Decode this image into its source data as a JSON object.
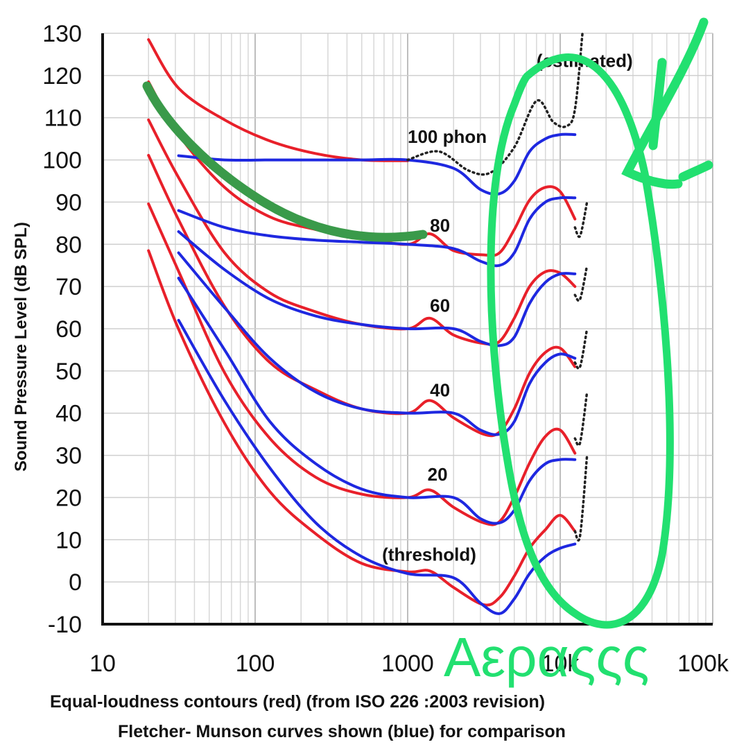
{
  "chart_data": {
    "type": "line",
    "title": "",
    "xlabel": "",
    "ylabel": "Sound Pressure Level (dB SPL)",
    "x_scale": "log",
    "xlim": [
      10,
      100000
    ],
    "ylim": [
      -10,
      130
    ],
    "grid": true,
    "x_ticks": [
      10,
      100,
      1000,
      10000,
      100000
    ],
    "x_tick_labels": [
      "10",
      "100",
      "1000",
      "10k",
      "100k"
    ],
    "y_ticks": [
      -10,
      0,
      10,
      20,
      30,
      40,
      50,
      60,
      70,
      80,
      90,
      100,
      110,
      120,
      130
    ],
    "y_tick_labels": [
      "-10",
      "0",
      "10",
      "20",
      "30",
      "40",
      "50",
      "60",
      "70",
      "80",
      "90",
      "100",
      "110",
      "120",
      "130"
    ],
    "caption_lines": [
      "Equal-loudness contours (red) (from ISO 226 :2003 revision)",
      "Fletcher- Munson curves shown (blue) for comparison"
    ],
    "annotations": [
      {
        "text": "(estimated)",
        "x": 7000,
        "y": 122
      },
      {
        "text": "100 phon",
        "x": 1000,
        "y": 104
      },
      {
        "text": "80",
        "x": 1400,
        "y": 83
      },
      {
        "text": "60",
        "x": 1400,
        "y": 64
      },
      {
        "text": "40",
        "x": 1400,
        "y": 44
      },
      {
        "text": "20",
        "x": 1350,
        "y": 24
      },
      {
        "text": "(threshold)",
        "x": 680,
        "y": 5
      }
    ],
    "series": [
      {
        "color": "#e8202a",
        "group": "iso",
        "x": [
          20,
          31.5,
          63,
          125,
          250,
          500,
          1000,
          1400,
          2000,
          3150,
          4000,
          5000,
          6300,
          8000,
          10000,
          12500
        ],
        "y": [
          78.5,
          59.9,
          37.6,
          21.4,
          11.4,
          4.4,
          2.4,
          2.6,
          -1.3,
          -5.4,
          -3.7,
          1.4,
          8,
          12.4,
          15.8,
          12
        ]
      },
      {
        "color": "#e8202a",
        "group": "iso",
        "x": [
          20,
          31.5,
          63,
          125,
          250,
          500,
          1000,
          1400,
          2000,
          3150,
          4000,
          5000,
          6300,
          8000,
          10000,
          12500
        ],
        "y": [
          89.6,
          73.6,
          49.6,
          34,
          24.8,
          20.8,
          20,
          21.8,
          17.7,
          14,
          14.3,
          20.1,
          28.2,
          34.5,
          36,
          30.5
        ]
      },
      {
        "color": "#e8202a",
        "group": "iso",
        "x": [
          20,
          31.5,
          63,
          125,
          250,
          500,
          1000,
          1400,
          2000,
          3150,
          4000,
          5000,
          6300,
          8000,
          10000,
          12500
        ],
        "y": [
          101.1,
          85.8,
          65.3,
          52,
          45.5,
          41,
          40,
          43,
          38.9,
          35,
          35.5,
          41,
          49.5,
          54.4,
          55.4,
          51
        ]
      },
      {
        "color": "#e8202a",
        "group": "iso",
        "x": [
          20,
          31.5,
          63,
          125,
          250,
          500,
          1000,
          1400,
          2000,
          3150,
          4000,
          5000,
          6300,
          8000,
          10000,
          12500
        ],
        "y": [
          109.5,
          95.8,
          78,
          68.5,
          64,
          61,
          60,
          62.5,
          58.5,
          56.5,
          57,
          62.5,
          70,
          73.5,
          73.2,
          70
        ]
      },
      {
        "color": "#e8202a",
        "group": "iso",
        "x": [
          20,
          31.5,
          63,
          125,
          250,
          500,
          1000,
          1400,
          2000,
          3150,
          4000,
          5000,
          6300,
          8000,
          10000,
          12500
        ],
        "y": [
          118.5,
          106,
          93.5,
          86.5,
          83.5,
          81.5,
          80,
          82.5,
          78.5,
          77.5,
          78,
          83.5,
          90.5,
          93.5,
          92.5,
          86
        ]
      },
      {
        "color": "#e8202a",
        "group": "iso",
        "x": [
          20,
          31.5,
          63,
          125,
          250,
          500,
          1000
        ],
        "y": [
          128.5,
          117,
          109.5,
          104.5,
          101.5,
          100,
          99.8
        ]
      },
      {
        "color": "#1e28e0",
        "group": "fm",
        "x": [
          31.5,
          63,
          125,
          250,
          500,
          1000,
          2000,
          3000,
          4000,
          5000,
          6300,
          8000,
          10000,
          12500
        ],
        "y": [
          62,
          43,
          27,
          14,
          6,
          2,
          1,
          -5,
          -7.5,
          -4,
          2,
          6,
          8,
          9
        ]
      },
      {
        "color": "#1e28e0",
        "group": "fm",
        "x": [
          31.5,
          63,
          125,
          250,
          500,
          1000,
          2000,
          3000,
          4000,
          5000,
          6300,
          8000,
          10000,
          12500
        ],
        "y": [
          72,
          55,
          38,
          28,
          22,
          20,
          20,
          15,
          14,
          17,
          24,
          28,
          29,
          29
        ]
      },
      {
        "color": "#1e28e0",
        "group": "fm",
        "x": [
          31.5,
          63,
          125,
          250,
          500,
          1000,
          2000,
          3000,
          4000,
          5000,
          6300,
          8000,
          10000,
          12500
        ],
        "y": [
          78,
          65,
          53,
          45,
          41,
          40,
          40,
          36,
          35,
          38,
          47,
          52,
          54,
          53
        ]
      },
      {
        "color": "#1e28e0",
        "group": "fm",
        "x": [
          31.5,
          63,
          125,
          250,
          500,
          1000,
          2000,
          3000,
          4000,
          5000,
          6300,
          8000,
          10000,
          12500
        ],
        "y": [
          83,
          74,
          67,
          63,
          61,
          60,
          60,
          57,
          56,
          58,
          66,
          71,
          73,
          73
        ]
      },
      {
        "color": "#1e28e0",
        "group": "fm",
        "x": [
          31.5,
          63,
          125,
          250,
          500,
          1000,
          2000,
          3000,
          4000,
          5000,
          6300,
          8000,
          10000,
          12500
        ],
        "y": [
          88,
          84,
          82,
          81,
          80.5,
          80,
          79,
          76,
          75,
          78,
          86,
          90,
          91,
          91
        ]
      },
      {
        "color": "#1e28e0",
        "group": "fm",
        "x": [
          31.5,
          63,
          125,
          250,
          500,
          1000,
          2000,
          3000,
          4000,
          5000,
          6300,
          8000,
          10000,
          12500
        ],
        "y": [
          101,
          100,
          100,
          100,
          100,
          100,
          98,
          93,
          92,
          95,
          102,
          105,
          106,
          106
        ]
      },
      {
        "color": "#222222",
        "group": "estimated",
        "x": [
          1000,
          1600,
          2500,
          3500,
          5000,
          7000,
          9000,
          11000,
          12500,
          14000
        ],
        "y": [
          100,
          102,
          97.5,
          97,
          103,
          114,
          109,
          108,
          112,
          130
        ]
      },
      {
        "color": "#222222",
        "group": "estimated",
        "x": [
          12500,
          13500,
          15000
        ],
        "y": [
          84,
          82,
          90
        ]
      },
      {
        "color": "#222222",
        "group": "estimated",
        "x": [
          12500,
          13500,
          15000
        ],
        "y": [
          68,
          67,
          75
        ]
      },
      {
        "color": "#222222",
        "group": "estimated",
        "x": [
          12500,
          13500,
          15000
        ],
        "y": [
          52,
          51,
          60
        ]
      },
      {
        "color": "#222222",
        "group": "estimated",
        "x": [
          12500,
          13500,
          15000
        ],
        "y": [
          34,
          33,
          45
        ]
      },
      {
        "color": "#222222",
        "group": "estimated",
        "x": [
          12500,
          13500,
          15000
        ],
        "y": [
          12,
          11,
          30
        ]
      }
    ],
    "handwriting": {
      "text": "Αεραςςς",
      "color": "#22e070",
      "underline_color": "#3a9a4a"
    }
  }
}
